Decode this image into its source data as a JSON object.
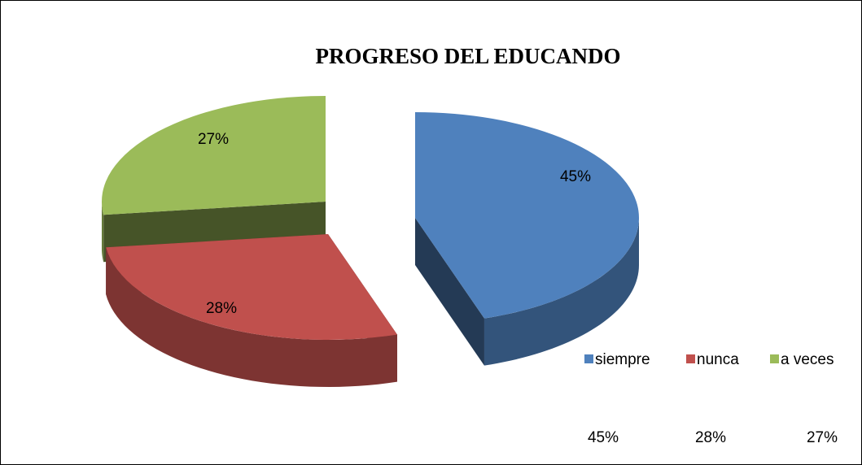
{
  "chart_data": {
    "type": "pie",
    "title": "PROGRESO DEL EDUCANDO",
    "categories": [
      "siempre",
      "nunca",
      "a veces"
    ],
    "values": [
      45,
      28,
      27
    ],
    "value_labels": [
      "45%",
      "28%",
      "27%"
    ],
    "colors": [
      "#4f81bd",
      "#c0504d",
      "#9bbb59"
    ],
    "legend": "bottom-right"
  }
}
